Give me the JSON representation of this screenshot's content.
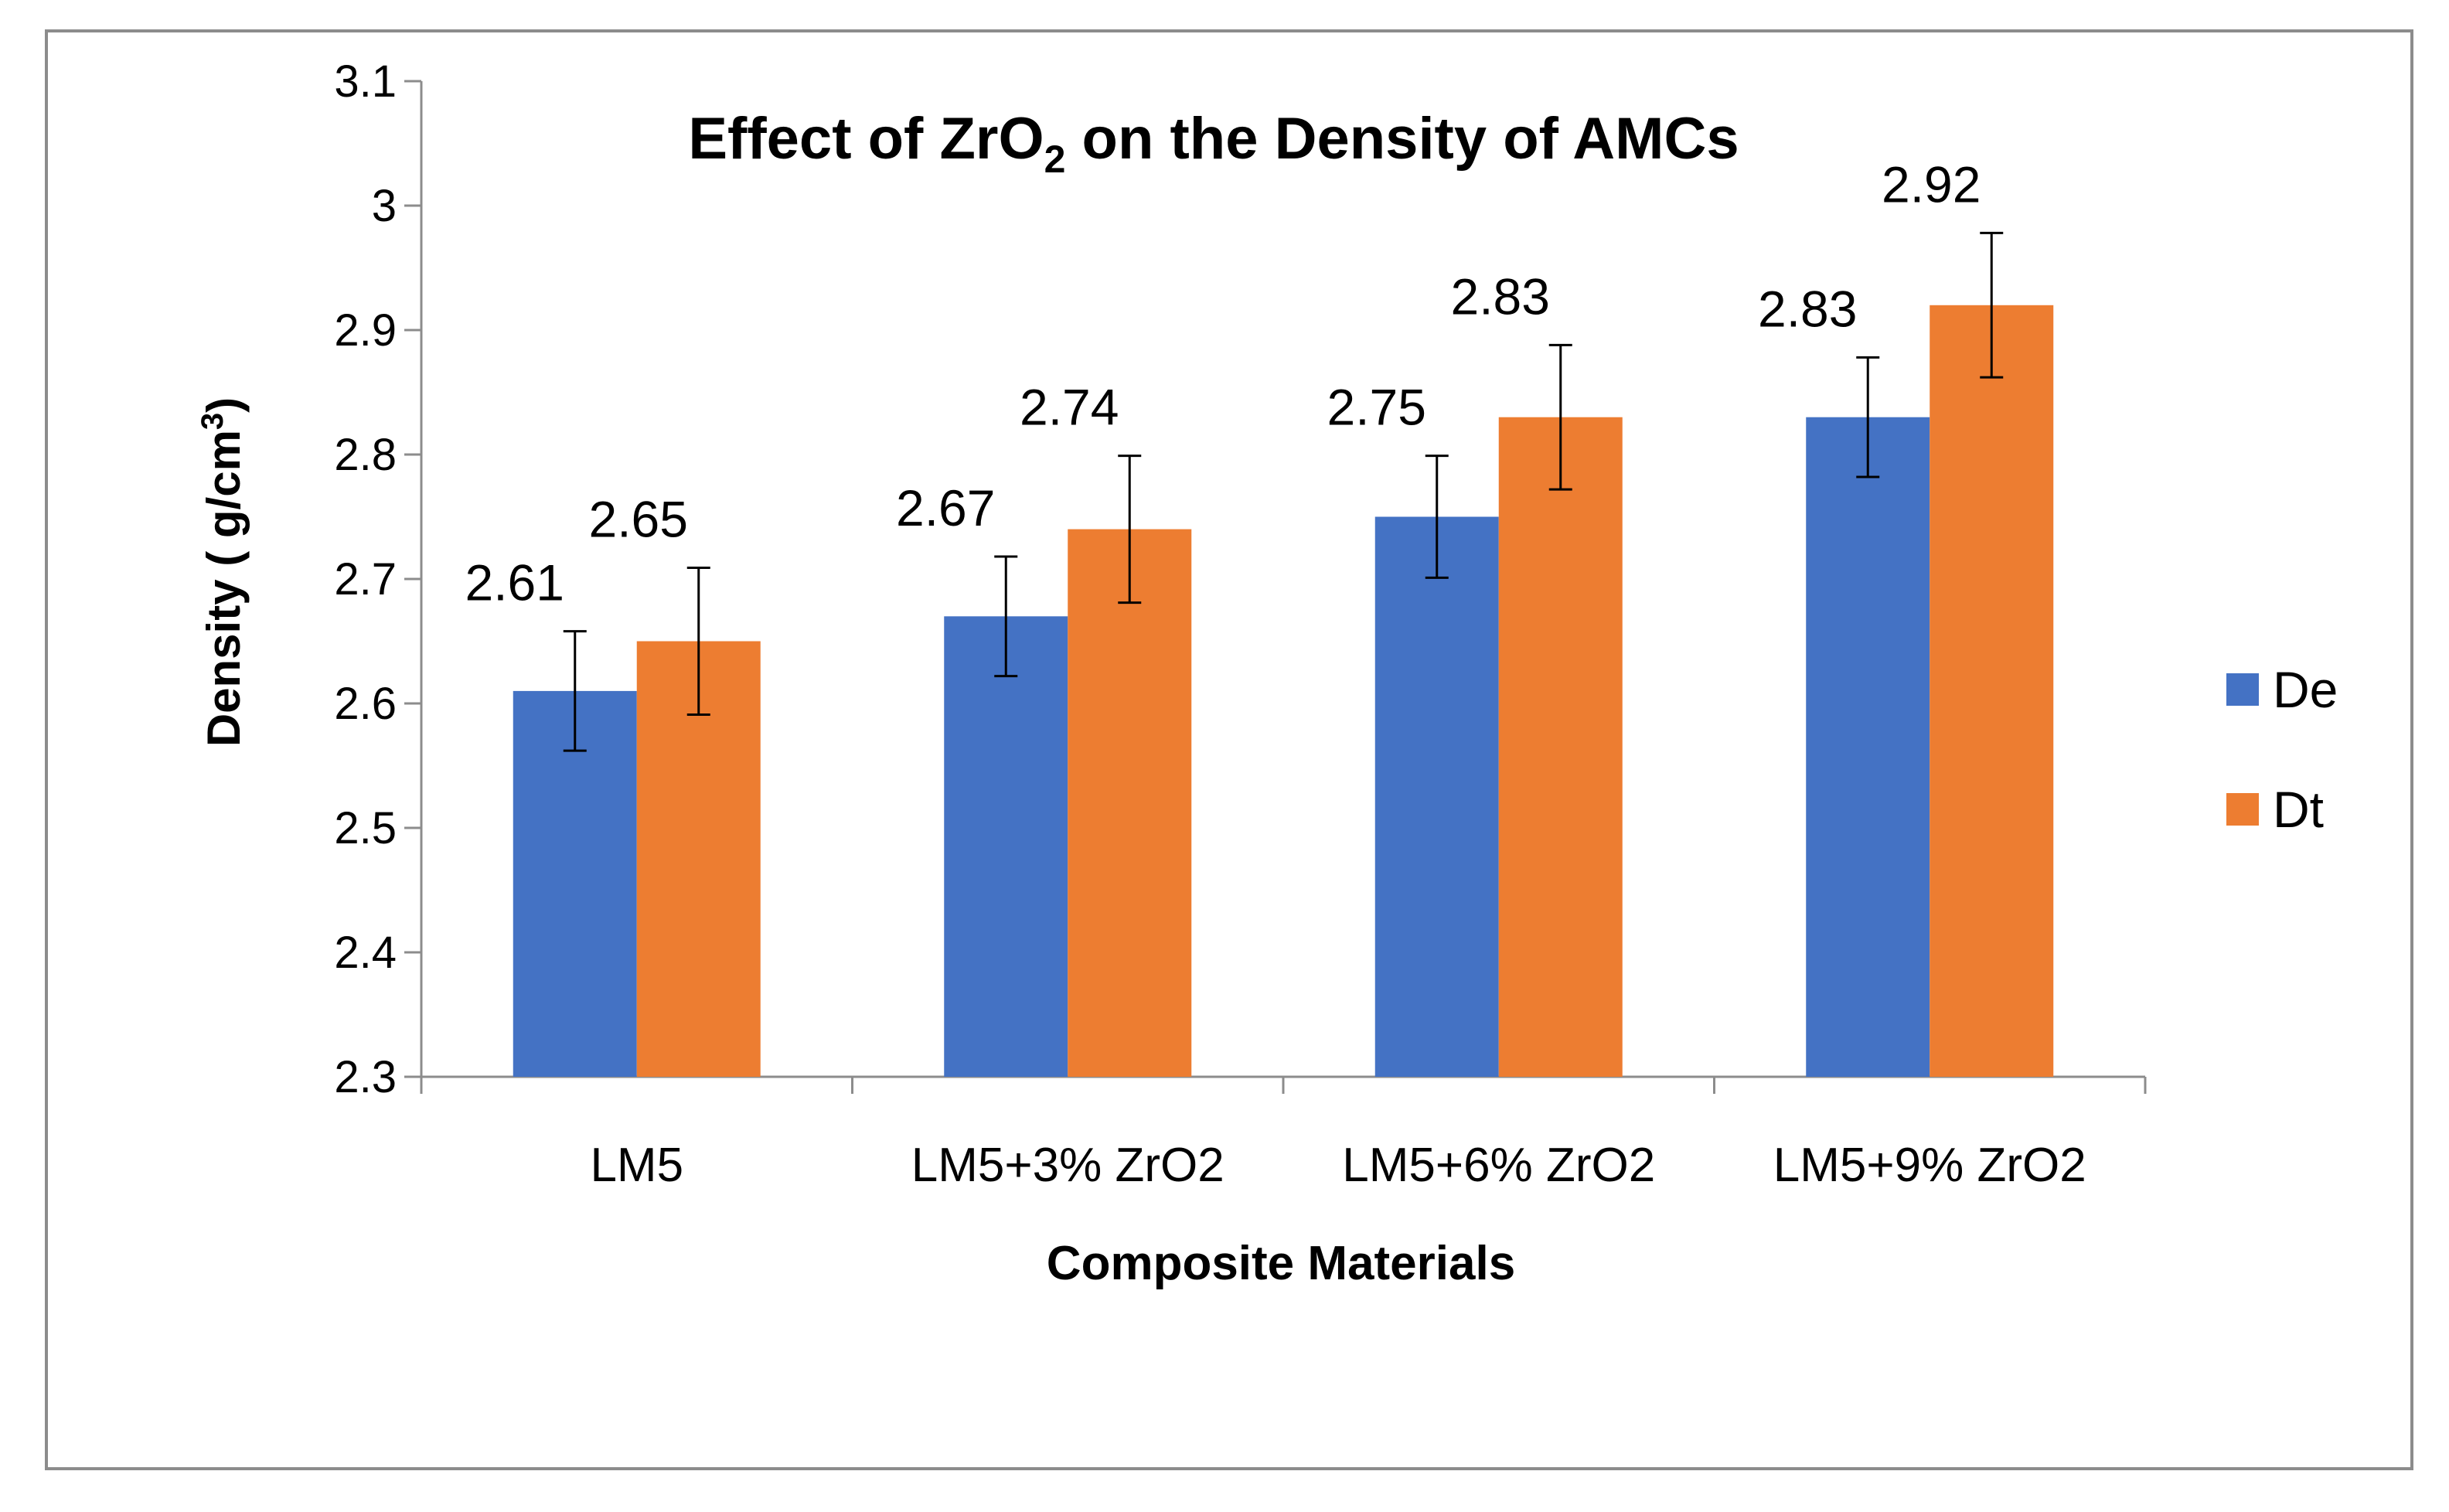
{
  "chart_data": {
    "type": "bar",
    "title": {
      "main": "Effect of ZrO",
      "sub": "2",
      "rest": " on the Density of AMCs"
    },
    "xlabel": "Composite Materials",
    "ylabel": {
      "main": "Density ( g/cm",
      "sup": "3",
      "rest": ")"
    },
    "categories": [
      "LM5",
      "LM5+3% ZrO2",
      "LM5+6% ZrO2",
      "LM5+9% ZrO2"
    ],
    "ylim": [
      2.3,
      3.1
    ],
    "yticks": [
      "2.3",
      "2.4",
      "2.5",
      "2.6",
      "2.7",
      "2.8",
      "2.9",
      "3",
      "3.1"
    ],
    "grid": false,
    "legend_position": "right",
    "series": [
      {
        "name": "De",
        "color": "#4472C4",
        "values": [
          2.61,
          2.67,
          2.75,
          2.83
        ],
        "labels": [
          "2.61",
          "2.67",
          "2.75",
          "2.83"
        ],
        "error": [
          0.048,
          0.048,
          0.049,
          0.048
        ]
      },
      {
        "name": "Dt",
        "color": "#ED7D31",
        "values": [
          2.65,
          2.74,
          2.83,
          2.92
        ],
        "labels": [
          "2.65",
          "2.74",
          "2.83",
          "2.92"
        ],
        "error": [
          0.059,
          0.059,
          0.058,
          0.058
        ]
      }
    ]
  }
}
